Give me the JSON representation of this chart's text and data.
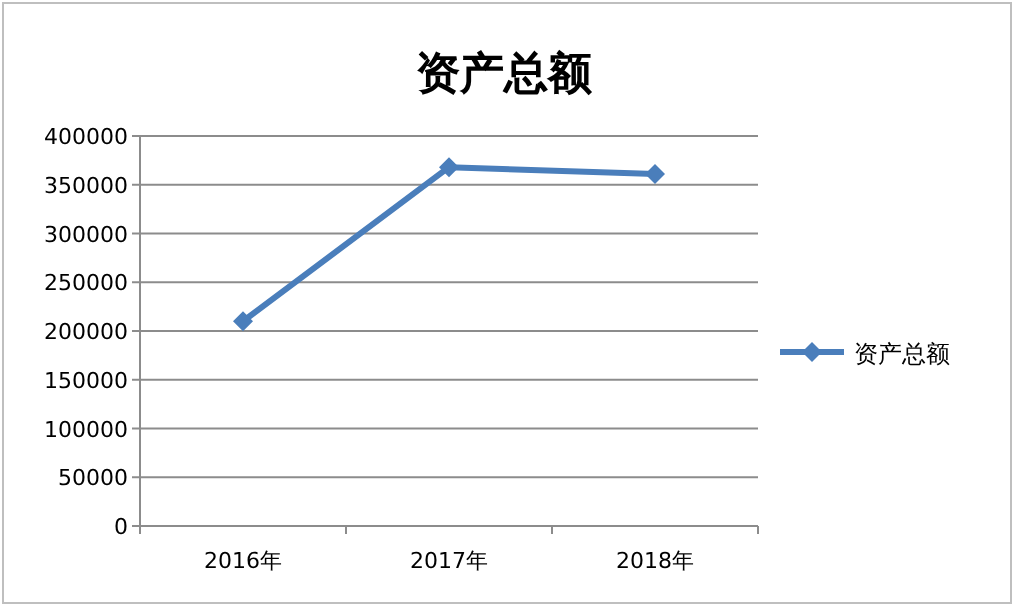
{
  "chart_data": {
    "type": "line",
    "title": "资产总额",
    "categories": [
      "2016年",
      "2017年",
      "2018年"
    ],
    "series": [
      {
        "name": "资产总额",
        "color": "#4a7ebb",
        "values": [
          210000,
          368000,
          361000
        ]
      }
    ],
    "ylim": [
      0,
      400000
    ],
    "yticks": [
      0,
      50000,
      100000,
      150000,
      200000,
      250000,
      300000,
      350000,
      400000
    ],
    "grid": "y",
    "legend": "right",
    "marker": "diamond",
    "line_style": "solid"
  }
}
